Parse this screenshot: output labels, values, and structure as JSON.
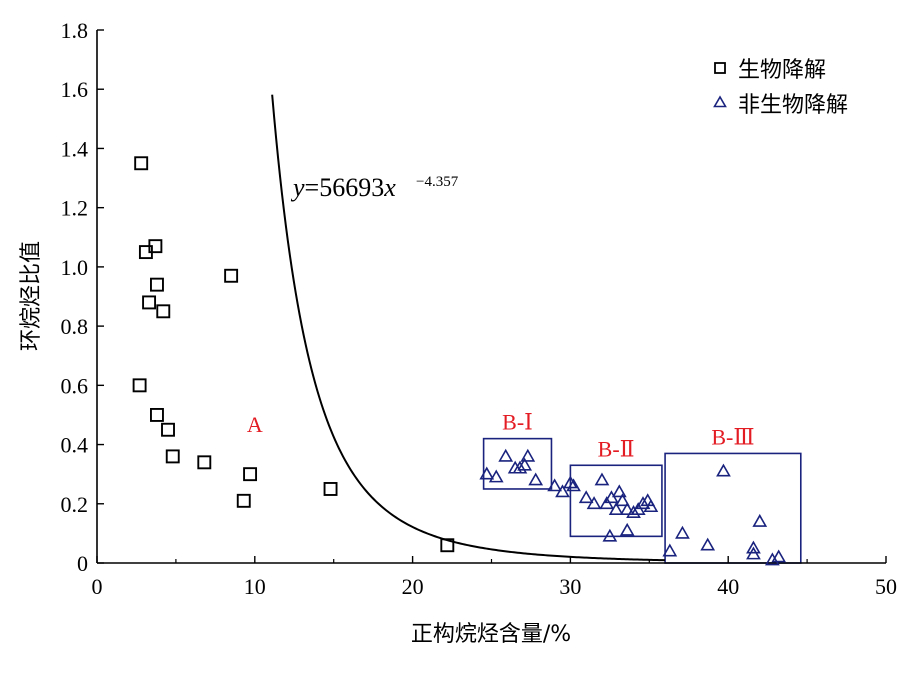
{
  "chart_data": {
    "type": "scatter",
    "xlabel": "正构烷烃含量/%",
    "ylabel": "环烷烃比值",
    "xlim": [
      0,
      50
    ],
    "ylim": [
      0,
      1.8
    ],
    "x_ticks": [
      "0",
      "10",
      "20",
      "30",
      "40",
      "50"
    ],
    "y_ticks": [
      "0",
      "0.2",
      "0.4",
      "0.6",
      "0.8",
      "1.0",
      "1.2",
      "1.4",
      "1.6",
      "1.8"
    ],
    "legend_position": "top-right",
    "colors": {
      "biodegraded": "#000000",
      "non_biodegraded": "#1a237e",
      "region_labels": "#e31b23",
      "boxes": "#1a237e"
    },
    "series": [
      {
        "name": "生物降解",
        "marker": "square",
        "points": [
          [
            2.8,
            1.35
          ],
          [
            3.1,
            1.05
          ],
          [
            3.7,
            1.07
          ],
          [
            3.3,
            0.88
          ],
          [
            3.8,
            0.94
          ],
          [
            4.2,
            0.85
          ],
          [
            8.5,
            0.97
          ],
          [
            2.7,
            0.6
          ],
          [
            3.8,
            0.5
          ],
          [
            4.5,
            0.45
          ],
          [
            4.8,
            0.36
          ],
          [
            6.8,
            0.34
          ],
          [
            9.7,
            0.3
          ],
          [
            9.3,
            0.21
          ],
          [
            14.8,
            0.25
          ],
          [
            22.2,
            0.06
          ]
        ]
      },
      {
        "name": "非生物降解",
        "marker": "triangle",
        "points": [
          [
            24.7,
            0.3
          ],
          [
            25.3,
            0.29
          ],
          [
            25.9,
            0.36
          ],
          [
            26.5,
            0.32
          ],
          [
            26.8,
            0.32
          ],
          [
            27.1,
            0.33
          ],
          [
            27.3,
            0.36
          ],
          [
            27.8,
            0.28
          ],
          [
            29.0,
            0.26
          ],
          [
            29.5,
            0.24
          ],
          [
            30.0,
            0.27
          ],
          [
            30.2,
            0.26
          ],
          [
            31.0,
            0.22
          ],
          [
            31.5,
            0.2
          ],
          [
            32.0,
            0.28
          ],
          [
            32.3,
            0.2
          ],
          [
            32.6,
            0.22
          ],
          [
            32.9,
            0.18
          ],
          [
            33.1,
            0.24
          ],
          [
            33.3,
            0.21
          ],
          [
            33.6,
            0.18
          ],
          [
            34.0,
            0.17
          ],
          [
            34.3,
            0.18
          ],
          [
            34.6,
            0.2
          ],
          [
            34.9,
            0.21
          ],
          [
            35.1,
            0.19
          ],
          [
            32.5,
            0.09
          ],
          [
            33.6,
            0.11
          ],
          [
            36.3,
            0.04
          ],
          [
            37.1,
            0.1
          ],
          [
            38.7,
            0.06
          ],
          [
            39.7,
            0.31
          ],
          [
            41.6,
            0.05
          ],
          [
            41.6,
            0.03
          ],
          [
            42.0,
            0.14
          ],
          [
            42.8,
            0.01
          ],
          [
            43.2,
            0.02
          ]
        ]
      }
    ],
    "fit": {
      "label": "y=56693x",
      "exponent": "−4.357",
      "coefficient": 56693,
      "power": -4.357,
      "x_range": [
        11.1,
        36
      ]
    },
    "regions": [
      {
        "label": "A",
        "x": 10,
        "y": 0.47
      },
      {
        "label": "B-Ⅰ",
        "x_range": [
          24.5,
          28.8
        ],
        "y_range": [
          0.25,
          0.42
        ]
      },
      {
        "label": "B-Ⅱ",
        "x_range": [
          30.0,
          35.8
        ],
        "y_range": [
          0.09,
          0.33
        ]
      },
      {
        "label": "B-Ⅲ",
        "x_range": [
          36.0,
          44.6
        ],
        "y_range": [
          0.0,
          0.37
        ]
      }
    ]
  }
}
